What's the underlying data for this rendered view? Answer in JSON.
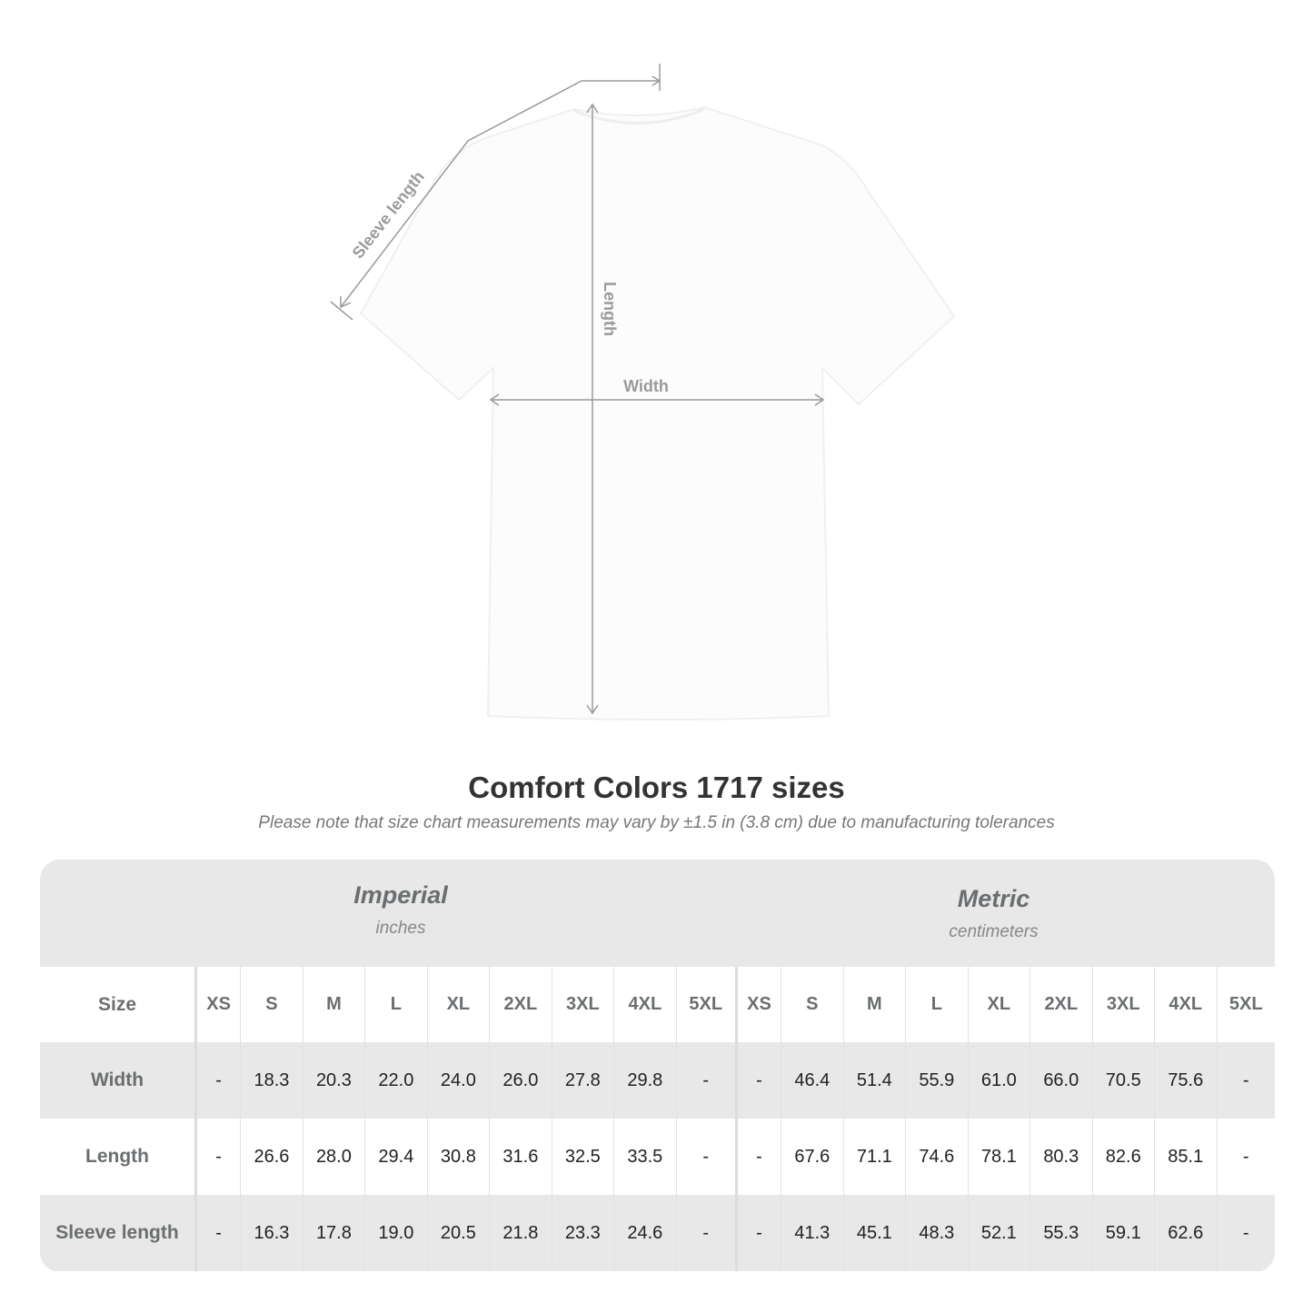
{
  "diagram": {
    "labels": {
      "sleeve": "Sleeve length",
      "length": "Length",
      "width": "Width"
    },
    "line_color": "#9a9a9a"
  },
  "title": "Comfort Colors 1717 sizes",
  "note": "Please note that size chart measurements may vary by ±1.5 in (3.8 cm) due to manufacturing tolerances",
  "table": {
    "imperial": {
      "title": "Imperial",
      "unit": "inches"
    },
    "metric": {
      "title": "Metric",
      "unit": "centimeters"
    },
    "size_label": "Size",
    "sizes": [
      "XS",
      "S",
      "M",
      "L",
      "XL",
      "2XL",
      "3XL",
      "4XL",
      "5XL"
    ],
    "rows": [
      {
        "label": "Width",
        "imperial": [
          "-",
          "18.3",
          "20.3",
          "22.0",
          "24.0",
          "26.0",
          "27.8",
          "29.8",
          "-"
        ],
        "metric": [
          "-",
          "46.4",
          "51.4",
          "55.9",
          "61.0",
          "66.0",
          "70.5",
          "75.6",
          "-"
        ]
      },
      {
        "label": "Length",
        "imperial": [
          "-",
          "26.6",
          "28.0",
          "29.4",
          "30.8",
          "31.6",
          "32.5",
          "33.5",
          "-"
        ],
        "metric": [
          "-",
          "67.6",
          "71.1",
          "74.6",
          "78.1",
          "80.3",
          "82.6",
          "85.1",
          "-"
        ]
      },
      {
        "label": "Sleeve length",
        "imperial": [
          "-",
          "16.3",
          "17.8",
          "19.0",
          "20.5",
          "21.8",
          "23.3",
          "24.6",
          "-"
        ],
        "metric": [
          "-",
          "41.3",
          "45.1",
          "48.3",
          "52.1",
          "55.3",
          "59.1",
          "62.6",
          "-"
        ]
      }
    ]
  }
}
